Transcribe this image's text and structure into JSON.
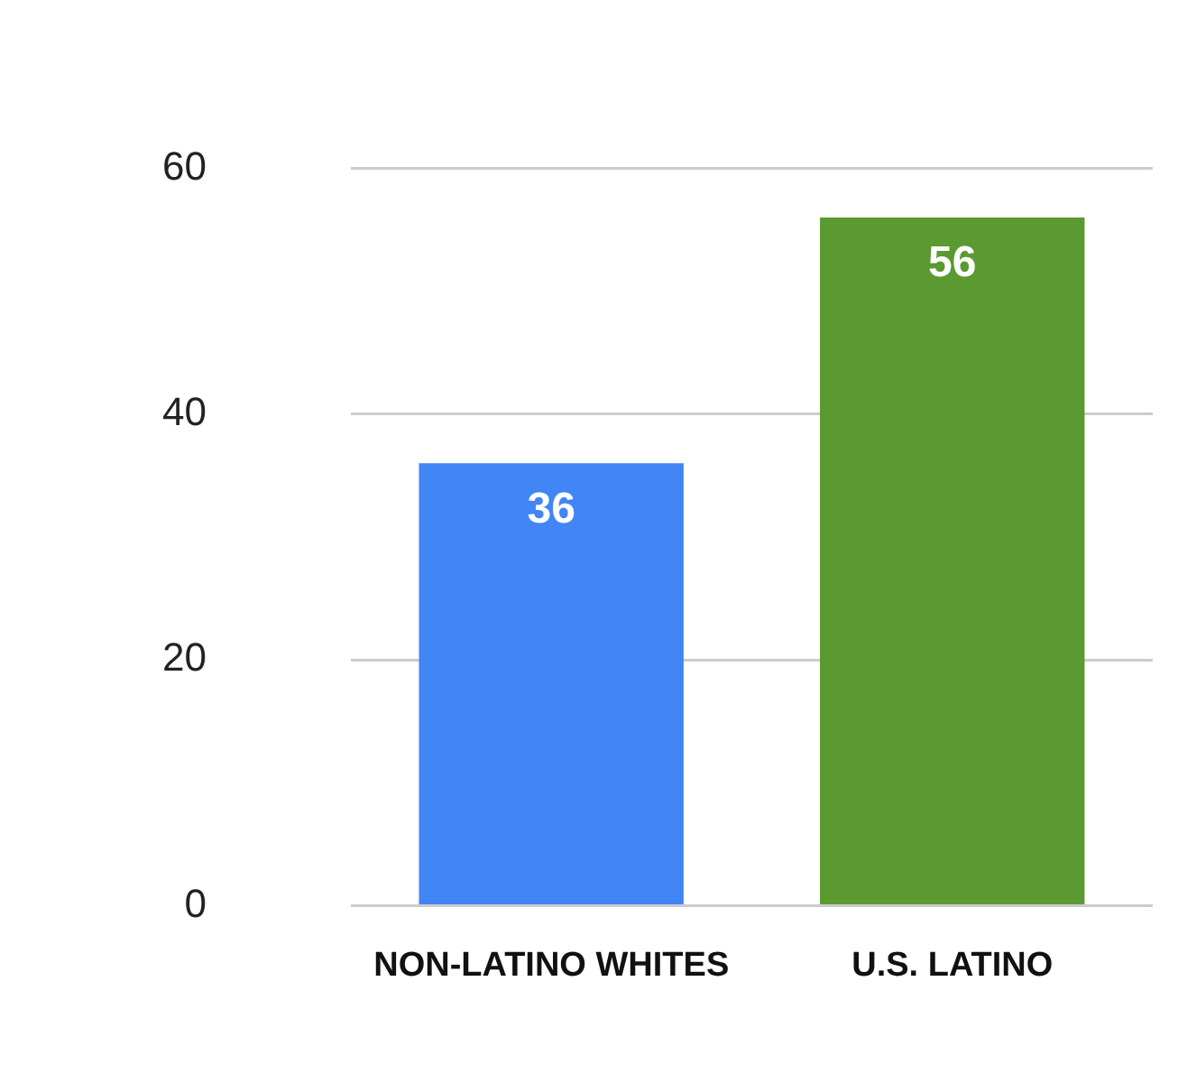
{
  "chart_data": {
    "type": "bar",
    "categories": [
      "NON-LATINO WHITES",
      "U.S. LATINO"
    ],
    "values": [
      36,
      56
    ],
    "colors": [
      "#4285f4",
      "#5b9a30"
    ],
    "ylim": [
      0,
      60
    ],
    "yticks": [
      0,
      20,
      40,
      60
    ],
    "grid": "y",
    "data_labels": true
  }
}
